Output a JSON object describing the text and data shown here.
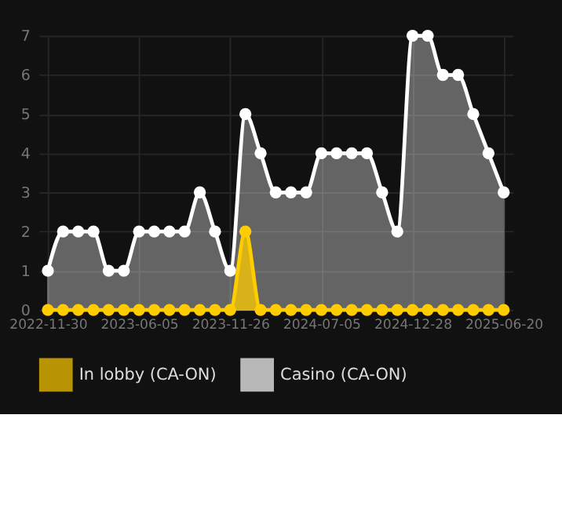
{
  "chart_data": {
    "type": "area",
    "categories": [
      "2022-11-30",
      null,
      null,
      null,
      null,
      null,
      "2023-06-05",
      null,
      null,
      null,
      null,
      null,
      "2023-11-26",
      null,
      null,
      null,
      null,
      null,
      "2024-07-05",
      null,
      null,
      null,
      null,
      null,
      "2024-12-28",
      null,
      null,
      null,
      null,
      null,
      "2025-06-20"
    ],
    "series": [
      {
        "name": "In lobby (CA-ON)",
        "color": "#ffcc00",
        "values": [
          0,
          0,
          0,
          0,
          0,
          0,
          0,
          0,
          0,
          0,
          0,
          0,
          0,
          2,
          0,
          0,
          0,
          0,
          0,
          0,
          0,
          0,
          0,
          0,
          0,
          0,
          0,
          0,
          0,
          0,
          0
        ]
      },
      {
        "name": "Casino (CA-ON)",
        "color": "#ffffff",
        "values": [
          1,
          2,
          2,
          2,
          1,
          1,
          2,
          2,
          2,
          2,
          3,
          2,
          1,
          5,
          4,
          3,
          3,
          3,
          4,
          4,
          4,
          4,
          3,
          2,
          7,
          7,
          6,
          6,
          5,
          4,
          3
        ]
      }
    ],
    "ylim": [
      0,
      7
    ],
    "yticks": [
      0,
      1,
      2,
      3,
      4,
      5,
      6,
      7
    ],
    "grid": true,
    "legend": "bottom",
    "marker": "circle",
    "line_style": "solid"
  }
}
